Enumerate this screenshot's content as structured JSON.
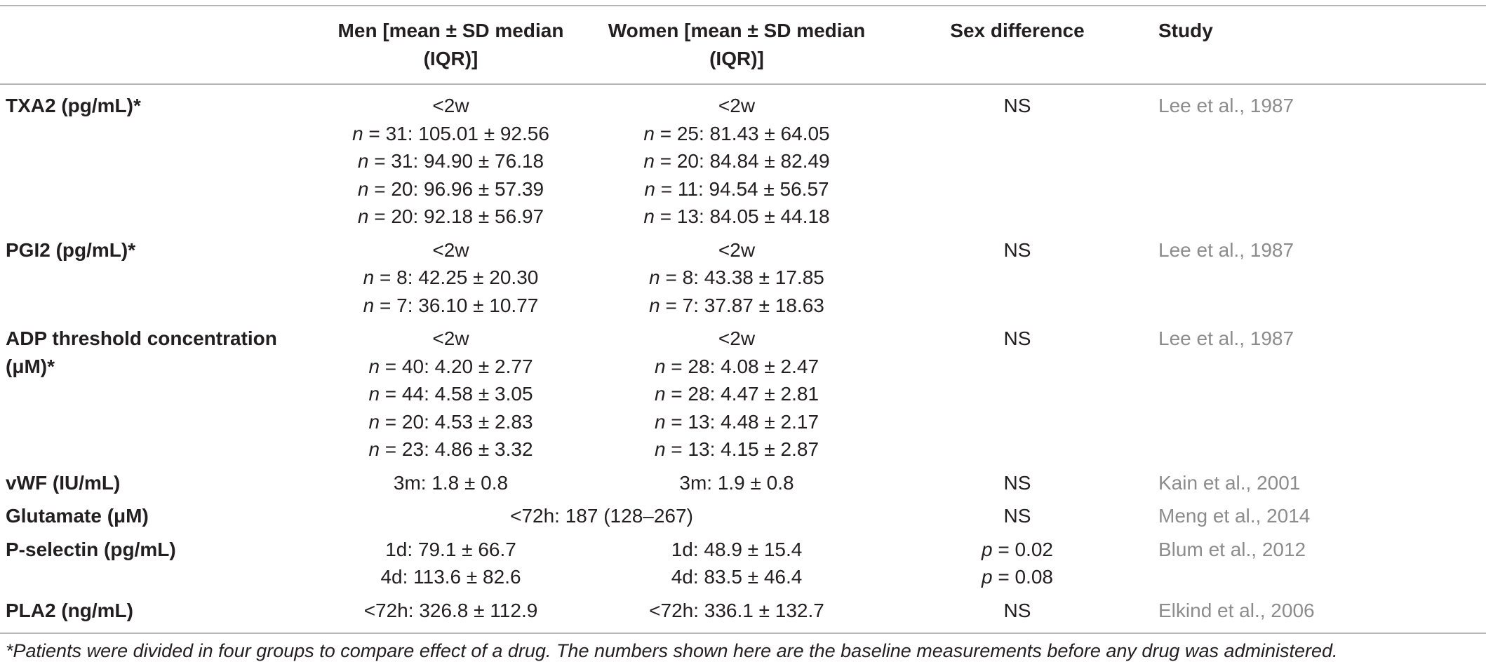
{
  "header": {
    "param": "",
    "men": "Men [mean ± SD median (IQR)]",
    "women": "Women [mean ± SD median (IQR)]",
    "sex_diff": "Sex difference",
    "study": "Study"
  },
  "rows": [
    {
      "param": "TXA2 (pg/mL)*",
      "men": [
        "<2w",
        "n = 31: 105.01 ± 92.56",
        "n = 31: 94.90 ± 76.18",
        "n = 20: 96.96 ± 57.39",
        "n = 20: 92.18 ± 56.97"
      ],
      "women": [
        "<2w",
        "n = 25: 81.43 ± 64.05",
        "n = 20: 84.84 ± 82.49",
        "n = 11: 94.54 ± 56.57",
        "n = 13: 84.05 ± 44.18"
      ],
      "sex_diff": [
        "NS"
      ],
      "study": "Lee et al., 1987"
    },
    {
      "param": "PGI2 (pg/mL)*",
      "men": [
        "<2w",
        "n = 8: 42.25 ± 20.30",
        "n = 7: 36.10 ± 10.77"
      ],
      "women": [
        "<2w",
        "n = 8: 43.38 ± 17.85",
        "n = 7: 37.87 ± 18.63"
      ],
      "sex_diff": [
        "NS"
      ],
      "study": "Lee et al., 1987"
    },
    {
      "param": "ADP threshold concentration (μM)*",
      "men": [
        "<2w",
        "n = 40: 4.20 ± 2.77",
        "n = 44: 4.58 ± 3.05",
        "n = 20: 4.53 ± 2.83",
        "n = 23: 4.86 ± 3.32"
      ],
      "women": [
        "<2w",
        "n = 28: 4.08 ± 2.47",
        "n = 28: 4.47 ± 2.81",
        "n = 13: 4.48 ± 2.17",
        "n = 13: 4.15 ± 2.87"
      ],
      "sex_diff": [
        "NS"
      ],
      "study": "Lee et al., 1987"
    },
    {
      "param": "vWF (IU/mL)",
      "men": [
        "3m: 1.8 ± 0.8"
      ],
      "women": [
        "3m: 1.9 ± 0.8"
      ],
      "sex_diff": [
        "NS"
      ],
      "study": "Kain et al., 2001"
    },
    {
      "param": "Glutamate (μM)",
      "combined": "<72h: 187 (128–267)",
      "sex_diff": [
        "NS"
      ],
      "study": "Meng et al., 2014"
    },
    {
      "param": "P-selectin (pg/mL)",
      "men": [
        "1d: 79.1 ± 66.7",
        "4d: 113.6 ± 82.6"
      ],
      "women": [
        "1d: 48.9 ± 15.4",
        "4d: 83.5 ± 46.4"
      ],
      "sex_diff": [
        "p = 0.02",
        "p = 0.08"
      ],
      "study": "Blum et al., 2012"
    },
    {
      "param": "PLA2 (ng/mL)",
      "men": [
        "<72h: 326.8 ± 112.9"
      ],
      "women": [
        "<72h: 336.1 ± 132.7"
      ],
      "sex_diff": [
        "NS"
      ],
      "study": "Elkind et al., 2006"
    }
  ],
  "footnote": "*Patients were divided in four groups to compare effect of a drug. The numbers shown here are the baseline measurements before any drug was administered."
}
